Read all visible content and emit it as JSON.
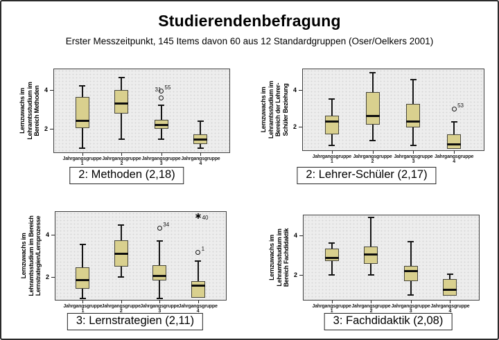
{
  "header": {
    "title": "Studierendenbefragung",
    "subtitle": "Erster Messzeitpunkt, 145 Items davon 60 aus 12 Standardgruppen (Oser/Oelkers 2001)"
  },
  "colors": {
    "box_fill": "#d9d08e",
    "plot_bg": "#ededed",
    "frame": "#2a2a2a"
  },
  "chart_data": [
    {
      "type": "boxplot",
      "caption": "2: Methoden (2,18)",
      "ylabel_lines": [
        "Lernzuwachs im",
        "Lehramtsstudium im",
        "Bereich Methoden"
      ],
      "yticks": [
        4,
        2
      ],
      "ylim": [
        0.7,
        5.1
      ],
      "category_word": "Jahrgangsgruppe",
      "category_nums": [
        "1",
        "2",
        "3",
        "4"
      ],
      "groups": [
        {
          "min": 1.0,
          "q1": 2.05,
          "median": 2.4,
          "q3": 3.65,
          "max": 4.2,
          "outliers": []
        },
        {
          "min": 1.45,
          "q1": 2.8,
          "median": 3.3,
          "q3": 4.0,
          "max": 4.65,
          "outliers": []
        },
        {
          "min": 1.45,
          "q1": 2.0,
          "median": 2.2,
          "q3": 2.45,
          "max": 3.2,
          "outliers": [
            {
              "value": 3.6,
              "symbol": "circle",
              "label": "31",
              "label_pos": "above"
            },
            {
              "value": 3.93,
              "symbol": "circle",
              "label": "55",
              "label_pos": "right"
            }
          ]
        },
        {
          "min": 1.0,
          "q1": 1.2,
          "median": 1.45,
          "q3": 1.7,
          "max": 2.4,
          "outliers": []
        }
      ]
    },
    {
      "type": "boxplot",
      "caption": "2: Lehrer-Schüler  (2,17)",
      "ylabel_lines": [
        "Lernzuwachs im",
        "Lehramtsstudium im",
        "Bereich der Lehrer-",
        "Schüler Beziehung"
      ],
      "yticks": [
        4,
        2
      ],
      "ylim": [
        0.7,
        5.1
      ],
      "category_word": "Jahrgangsgruppe",
      "category_nums": [
        "1",
        "2",
        "3",
        "4"
      ],
      "groups": [
        {
          "min": 1.0,
          "q1": 1.6,
          "median": 2.3,
          "q3": 2.6,
          "max": 3.5,
          "outliers": []
        },
        {
          "min": 1.25,
          "q1": 2.1,
          "median": 2.6,
          "q3": 3.9,
          "max": 4.95,
          "outliers": []
        },
        {
          "min": 1.0,
          "q1": 1.95,
          "median": 2.3,
          "q3": 3.25,
          "max": 4.55,
          "outliers": []
        },
        {
          "min": 0.8,
          "q1": 0.8,
          "median": 1.05,
          "q3": 1.6,
          "max": 2.25,
          "outliers": [
            {
              "value": 2.95,
              "symbol": "circle",
              "label": "53",
              "label_pos": "right"
            }
          ]
        }
      ]
    },
    {
      "type": "boxplot",
      "caption": "3: Lernstrategien  (2,11)",
      "ylabel_lines": [
        "Lernzuwachs im",
        "Lehramtsstudium im Bereich",
        "Lernstrategien/Lernprozesse"
      ],
      "yticks": [
        4,
        2
      ],
      "ylim": [
        0.7,
        5.1
      ],
      "category_word": "Jahrgangsgruppe",
      "category_nums": [
        "1",
        "2",
        "3",
        "4"
      ],
      "groups": [
        {
          "min": 1.0,
          "q1": 1.45,
          "median": 1.85,
          "q3": 2.45,
          "max": 3.55,
          "outliers": []
        },
        {
          "min": 2.0,
          "q1": 2.5,
          "median": 3.1,
          "q3": 3.75,
          "max": 4.45,
          "outliers": []
        },
        {
          "min": 1.0,
          "q1": 1.85,
          "median": 2.05,
          "q3": 2.55,
          "max": 3.7,
          "outliers": [
            {
              "value": 4.3,
              "symbol": "circle",
              "label": "34",
              "label_pos": "right"
            }
          ]
        },
        {
          "min": 1.0,
          "q1": 1.0,
          "median": 1.6,
          "q3": 1.8,
          "max": 2.75,
          "outliers": [
            {
              "value": 3.15,
              "symbol": "circle",
              "label": "1",
              "label_pos": "right"
            },
            {
              "value": 4.9,
              "symbol": "star",
              "label": "40",
              "label_pos": "right-low"
            }
          ]
        }
      ]
    },
    {
      "type": "boxplot",
      "caption": "3: Fachdidaktik  (2,08)",
      "ylabel_lines": [
        "Lernzuwachs im",
        "Lehramtsstudium im",
        "Bereich Fachdidaktik"
      ],
      "yticks": [
        4,
        2
      ],
      "ylim": [
        0.7,
        5.1
      ],
      "category_word": "Jahrgangsgruppe",
      "category_nums": [
        "1",
        "2",
        "3",
        "4"
      ],
      "groups": [
        {
          "min": 2.0,
          "q1": 2.7,
          "median": 2.85,
          "q3": 3.35,
          "max": 3.6,
          "outliers": []
        },
        {
          "min": 2.0,
          "q1": 2.55,
          "median": 3.05,
          "q3": 3.45,
          "max": 4.9,
          "outliers": []
        },
        {
          "min": 1.0,
          "q1": 1.7,
          "median": 2.2,
          "q3": 2.45,
          "max": 3.7,
          "outliers": []
        },
        {
          "min": 0.95,
          "q1": 0.95,
          "median": 1.25,
          "q3": 1.8,
          "max": 2.05,
          "outliers": []
        }
      ]
    }
  ]
}
